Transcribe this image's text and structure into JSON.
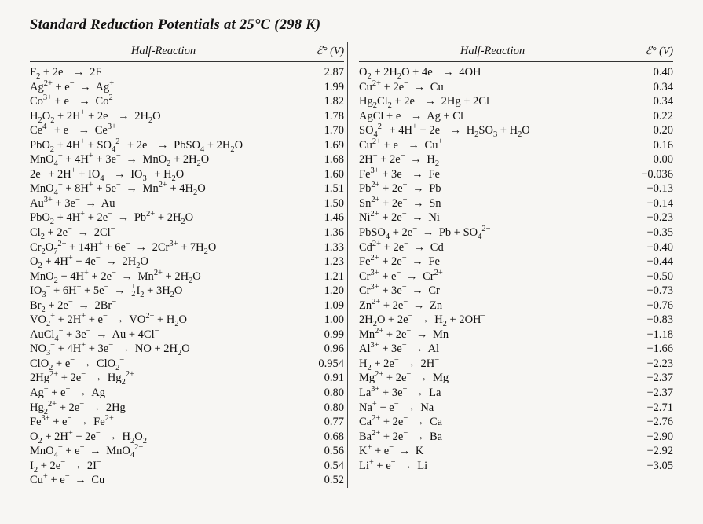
{
  "title": "Standard Reduction Potentials at 25°C (298 K)",
  "headers": {
    "reaction": "Half-Reaction",
    "potential": "ℰ° (V)"
  },
  "left": [
    {
      "rxn": "F<sub>2</sub> + 2e<sup>−</sup> → 2F<sup>−</sup>",
      "v": "2.87"
    },
    {
      "rxn": "Ag<sup>2+</sup> + e<sup>−</sup> → Ag<sup>+</sup>",
      "v": "1.99"
    },
    {
      "rxn": "Co<sup>3+</sup> + e<sup>−</sup> → Co<sup>2+</sup>",
      "v": "1.82"
    },
    {
      "rxn": "H<sub>2</sub>O<sub>2</sub> + 2H<sup>+</sup> + 2e<sup>−</sup> → 2H<sub>2</sub>O",
      "v": "1.78"
    },
    {
      "rxn": "Ce<sup>4+</sup> + e<sup>−</sup> → Ce<sup>3+</sup>",
      "v": "1.70"
    },
    {
      "rxn": "PbO<sub>2</sub> + 4H<sup>+</sup> + SO<sub>4</sub><sup>2−</sup> + 2e<sup>−</sup> → PbSO<sub>4</sub> + 2H<sub>2</sub>O",
      "v": "1.69"
    },
    {
      "rxn": "MnO<sub>4</sub><sup>−</sup> + 4H<sup>+</sup> + 3e<sup>−</sup> → MnO<sub>2</sub> + 2H<sub>2</sub>O",
      "v": "1.68"
    },
    {
      "rxn": "2e<sup>−</sup> + 2H<sup>+</sup> + IO<sub>4</sub><sup>−</sup> → IO<sub>3</sub><sup>−</sup> + H<sub>2</sub>O",
      "v": "1.60"
    },
    {
      "rxn": "MnO<sub>4</sub><sup>−</sup> + 8H<sup>+</sup> + 5e<sup>−</sup> → Mn<sup>2+</sup> + 4H<sub>2</sub>O",
      "v": "1.51"
    },
    {
      "rxn": "Au<sup>3+</sup> + 3e<sup>−</sup> → Au",
      "v": "1.50"
    },
    {
      "rxn": "PbO<sub>2</sub> + 4H<sup>+</sup> + 2e<sup>−</sup> → Pb<sup>2+</sup> + 2H<sub>2</sub>O",
      "v": "1.46"
    },
    {
      "rxn": "Cl<sub>2</sub> + 2e<sup>−</sup> → 2Cl<sup>−</sup>",
      "v": "1.36"
    },
    {
      "rxn": "Cr<sub>2</sub>O<sub>7</sub><sup>2−</sup> + 14H<sup>+</sup> + 6e<sup>−</sup> → 2Cr<sup>3+</sup> + 7H<sub>2</sub>O",
      "v": "1.33"
    },
    {
      "rxn": "O<sub>2</sub> + 4H<sup>+</sup> + 4e<sup>−</sup> → 2H<sub>2</sub>O",
      "v": "1.23"
    },
    {
      "rxn": "MnO<sub>2</sub> + 4H<sup>+</sup> + 2e<sup>−</sup> → Mn<sup>2+</sup> + 2H<sub>2</sub>O",
      "v": "1.21"
    },
    {
      "rxn": "IO<sub>3</sub><sup>−</sup> + 6H<sup>+</sup> + 5e<sup>−</sup> → <span class='frac'><span class='n'>1</span><span class='d'>2</span></span>I<sub>2</sub> + 3H<sub>2</sub>O",
      "v": "1.20"
    },
    {
      "rxn": "Br<sub>2</sub> + 2e<sup>−</sup> → 2Br<sup>−</sup>",
      "v": "1.09"
    },
    {
      "rxn": "VO<sub>2</sub><sup>+</sup> + 2H<sup>+</sup> + e<sup>−</sup> → VO<sup>2+</sup> + H<sub>2</sub>O",
      "v": "1.00"
    },
    {
      "rxn": "AuCl<sub>4</sub><sup>−</sup> + 3e<sup>−</sup> → Au + 4Cl<sup>−</sup>",
      "v": "0.99"
    },
    {
      "rxn": "NO<sub>3</sub><sup>−</sup> + 4H<sup>+</sup> + 3e<sup>−</sup> → NO + 2H<sub>2</sub>O",
      "v": "0.96"
    },
    {
      "rxn": "ClO<sub>2</sub> + e<sup>−</sup> → ClO<sub>2</sub><sup>−</sup>",
      "v": "0.954"
    },
    {
      "rxn": "2Hg<sup>2+</sup> + 2e<sup>−</sup> → Hg<sub>2</sub><sup>2+</sup>",
      "v": "0.91"
    },
    {
      "rxn": "Ag<sup>+</sup> + e<sup>−</sup> → Ag",
      "v": "0.80"
    },
    {
      "rxn": "Hg<sub>2</sub><sup>2+</sup> + 2e<sup>−</sup> → 2Hg",
      "v": "0.80"
    },
    {
      "rxn": "Fe<sup>3+</sup> + e<sup>−</sup> → Fe<sup>2+</sup>",
      "v": "0.77"
    },
    {
      "rxn": "O<sub>2</sub> + 2H<sup>+</sup> + 2e<sup>−</sup> → H<sub>2</sub>O<sub>2</sub>",
      "v": "0.68"
    },
    {
      "rxn": "MnO<sub>4</sub><sup>−</sup> + e<sup>−</sup> → MnO<sub>4</sub><sup>2−</sup>",
      "v": "0.56"
    },
    {
      "rxn": "I<sub>2</sub> + 2e<sup>−</sup> → 2I<sup>−</sup>",
      "v": "0.54"
    },
    {
      "rxn": "Cu<sup>+</sup> + e<sup>−</sup> → Cu",
      "v": "0.52"
    }
  ],
  "right": [
    {
      "rxn": "O<sub>2</sub> + 2H<sub>2</sub>O + 4e<sup>−</sup> → 4OH<sup>−</sup>",
      "v": "0.40"
    },
    {
      "rxn": "Cu<sup>2+</sup> + 2e<sup>−</sup> → Cu",
      "v": "0.34"
    },
    {
      "rxn": "Hg<sub>2</sub>Cl<sub>2</sub> + 2e<sup>−</sup> → 2Hg + 2Cl<sup>−</sup>",
      "v": "0.34"
    },
    {
      "rxn": "AgCl + e<sup>−</sup> → Ag + Cl<sup>−</sup>",
      "v": "0.22"
    },
    {
      "rxn": "SO<sub>4</sub><sup>2−</sup> + 4H<sup>+</sup> + 2e<sup>−</sup> → H<sub>2</sub>SO<sub>3</sub> + H<sub>2</sub>O",
      "v": "0.20"
    },
    {
      "rxn": "Cu<sup>2+</sup> + e<sup>−</sup> → Cu<sup>+</sup>",
      "v": "0.16"
    },
    {
      "rxn": "2H<sup>+</sup> + 2e<sup>−</sup> → H<sub>2</sub>",
      "v": "0.00"
    },
    {
      "rxn": "Fe<sup>3+</sup> + 3e<sup>−</sup> → Fe",
      "v": "−0.036"
    },
    {
      "rxn": "Pb<sup>2+</sup> + 2e<sup>−</sup> → Pb",
      "v": "−0.13"
    },
    {
      "rxn": "Sn<sup>2+</sup> + 2e<sup>−</sup> → Sn",
      "v": "−0.14"
    },
    {
      "rxn": "Ni<sup>2+</sup> + 2e<sup>−</sup> → Ni",
      "v": "−0.23"
    },
    {
      "rxn": "PbSO<sub>4</sub> + 2e<sup>−</sup> → Pb + SO<sub>4</sub><sup>2−</sup>",
      "v": "−0.35"
    },
    {
      "rxn": "Cd<sup>2+</sup> + 2e<sup>−</sup> → Cd",
      "v": "−0.40"
    },
    {
      "rxn": "Fe<sup>2+</sup> + 2e<sup>−</sup> → Fe",
      "v": "−0.44"
    },
    {
      "rxn": "Cr<sup>3+</sup> + e<sup>−</sup> → Cr<sup>2+</sup>",
      "v": "−0.50"
    },
    {
      "rxn": "Cr<sup>3+</sup> + 3e<sup>−</sup> → Cr",
      "v": "−0.73"
    },
    {
      "rxn": "Zn<sup>2+</sup> + 2e<sup>−</sup> → Zn",
      "v": "−0.76"
    },
    {
      "rxn": "2H<sub>2</sub>O + 2e<sup>−</sup> → H<sub>2</sub> + 2OH<sup>−</sup>",
      "v": "−0.83"
    },
    {
      "rxn": "Mn<sup>2+</sup> + 2e<sup>−</sup> → Mn",
      "v": "−1.18"
    },
    {
      "rxn": "Al<sup>3+</sup> + 3e<sup>−</sup> → Al",
      "v": "−1.66"
    },
    {
      "rxn": "H<sub>2</sub> + 2e<sup>−</sup> → 2H<sup>−</sup>",
      "v": "−2.23"
    },
    {
      "rxn": "Mg<sup>2+</sup> + 2e<sup>−</sup> → Mg",
      "v": "−2.37"
    },
    {
      "rxn": "La<sup>3+</sup> + 3e<sup>−</sup> → La",
      "v": "−2.37"
    },
    {
      "rxn": "Na<sup>+</sup> + e<sup>−</sup> → Na",
      "v": "−2.71"
    },
    {
      "rxn": "Ca<sup>2+</sup> + 2e<sup>−</sup> → Ca",
      "v": "−2.76"
    },
    {
      "rxn": "Ba<sup>2+</sup> + 2e<sup>−</sup> → Ba",
      "v": "−2.90"
    },
    {
      "rxn": "K<sup>+</sup> + e<sup>−</sup> → K",
      "v": "−2.92"
    },
    {
      "rxn": "Li<sup>+</sup> + e<sup>−</sup> → Li",
      "v": "−3.05"
    }
  ]
}
